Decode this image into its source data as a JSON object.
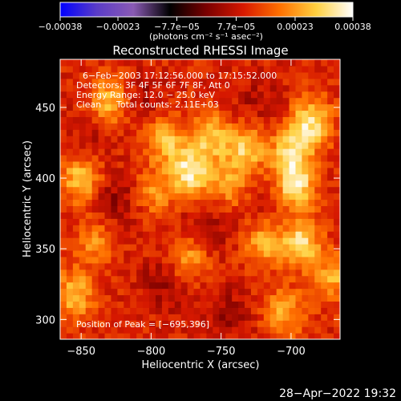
{
  "chart_data": {
    "type": "heatmap",
    "title": "Reconstructed RHESSI Image",
    "xlabel": "Heliocentric X (arcsec)",
    "ylabel": "Heliocentric Y (arcsec)",
    "xlim": [
      -865,
      -665
    ],
    "ylim": [
      286,
      484
    ],
    "x_ticks": [
      {
        "value": -850,
        "label": "−850"
      },
      {
        "value": -800,
        "label": "−800"
      },
      {
        "value": -750,
        "label": "−750"
      },
      {
        "value": -700,
        "label": "−700"
      }
    ],
    "y_ticks": [
      {
        "value": 300,
        "label": "300"
      },
      {
        "value": 350,
        "label": "350"
      },
      {
        "value": 400,
        "label": "400"
      },
      {
        "value": 450,
        "label": "450"
      }
    ],
    "colorbar": {
      "range": [
        -0.00038,
        0.00038
      ],
      "ticks": [
        {
          "value": -0.00038,
          "label": "−0.00038"
        },
        {
          "value": -0.00023,
          "label": "−0.00023"
        },
        {
          "value": -7.7e-05,
          "label": "−7.7e−05"
        },
        {
          "value": 7.7e-05,
          "label": "7.7e−05"
        },
        {
          "value": 0.00023,
          "label": "0.00023"
        },
        {
          "value": 0.00038,
          "label": "0.00038"
        }
      ],
      "unit_label": "(photons cm⁻² s⁻¹ asec⁻²)",
      "stops": [
        "#0000ff",
        "#5a3cc8",
        "#8a5ab4",
        "#000000",
        "#7a0000",
        "#d61800",
        "#ff7000",
        "#ffd040",
        "#ffffff"
      ]
    },
    "annotations": {
      "time_range": "6−Feb−2003 17:12:56.000 to 17:15:52.000",
      "detectors": "Detectors: 3F 4F 5F 6F 7F 8F, Att 0",
      "energy_range": "Energy Range: 12.0 − 25.0 keV",
      "clean_label": "Clean",
      "total_counts": "Total counts: 2.11E+03",
      "peak_position": "Position of Peak = [−695,396]"
    },
    "grid": false,
    "hot_spots": [
      {
        "x": -772,
        "y": 405,
        "weight": 1.0
      },
      {
        "x": -697,
        "y": 395,
        "weight": 1.0
      },
      {
        "x": -693,
        "y": 355,
        "weight": 0.9
      },
      {
        "x": -685,
        "y": 440,
        "weight": 0.9
      },
      {
        "x": -700,
        "y": 420,
        "weight": 0.8
      },
      {
        "x": -733,
        "y": 420,
        "weight": 0.75
      },
      {
        "x": -790,
        "y": 428,
        "weight": 0.7
      },
      {
        "x": -757,
        "y": 430,
        "weight": 0.7
      },
      {
        "x": -850,
        "y": 400,
        "weight": 0.75
      },
      {
        "x": -830,
        "y": 455,
        "weight": 0.7
      },
      {
        "x": -855,
        "y": 318,
        "weight": 0.7
      },
      {
        "x": -720,
        "y": 355,
        "weight": 0.6
      },
      {
        "x": -773,
        "y": 343,
        "weight": 0.55
      },
      {
        "x": -705,
        "y": 305,
        "weight": 0.6
      },
      {
        "x": -670,
        "y": 330,
        "weight": 0.6
      },
      {
        "x": -798,
        "y": 390,
        "weight": 0.5
      },
      {
        "x": -745,
        "y": 395,
        "weight": 0.5
      },
      {
        "x": -840,
        "y": 355,
        "weight": 0.45
      }
    ],
    "cold_spots": [
      {
        "x": -825,
        "y": 385,
        "weight": 0.9
      },
      {
        "x": -790,
        "y": 325,
        "weight": 0.85
      },
      {
        "x": -760,
        "y": 365,
        "weight": 0.8
      },
      {
        "x": -745,
        "y": 305,
        "weight": 0.75
      },
      {
        "x": -805,
        "y": 455,
        "weight": 0.7
      },
      {
        "x": -725,
        "y": 455,
        "weight": 0.6
      },
      {
        "x": -845,
        "y": 430,
        "weight": 0.5
      },
      {
        "x": -715,
        "y": 380,
        "weight": 0.5
      }
    ]
  },
  "footer": {
    "timestamp": "28−Apr−2022 19:32"
  },
  "colors": {
    "background": "#000000",
    "foreground": "#ffffff"
  }
}
